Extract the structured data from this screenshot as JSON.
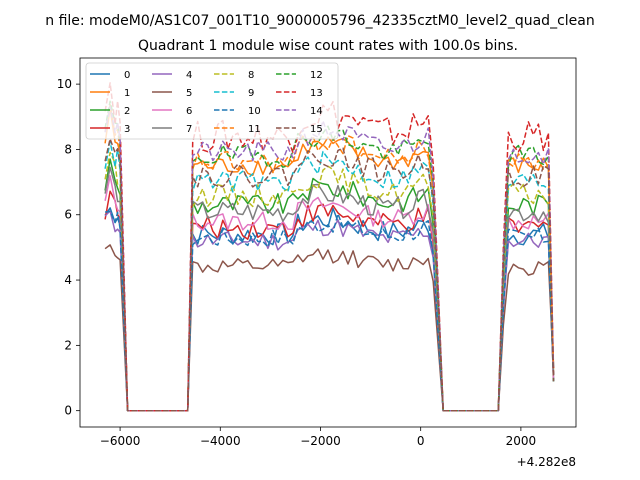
{
  "chart_data": {
    "type": "line",
    "title_line1": "n file: modeM0/AS1C07_001T10_9000005796_42335cztM0_level2_quad_clean",
    "title_line2": "Quadrant 1 module wise count rates with 100.0s bins.",
    "xlabel": "",
    "ylabel": "",
    "x_offset_label": "+4.282e8",
    "xlim": [
      -6800,
      3100
    ],
    "ylim": [
      -0.5,
      10.8
    ],
    "xticks": [
      -6000,
      -4000,
      -2000,
      0,
      2000
    ],
    "xtick_labels": [
      "−6000",
      "−4000",
      "−2000",
      "0",
      "2000"
    ],
    "yticks": [
      0,
      2,
      4,
      6,
      8,
      10
    ],
    "ytick_labels": [
      "0",
      "2",
      "4",
      "6",
      "8",
      "10"
    ],
    "legend_position": "top-left",
    "legend_columns": 4,
    "segments": [
      {
        "x_start": -6300,
        "x_end": -6000,
        "rise_to": -6000,
        "drop_to": -5850
      },
      {
        "x_start": -4650,
        "x_end": 250
      },
      {
        "x_start": 1550,
        "x_end": 2650
      }
    ],
    "gaps": [
      {
        "x_start": -5850,
        "x_end": -4650,
        "value": 0
      },
      {
        "x_start": 450,
        "x_end": 1550,
        "value": 0
      }
    ],
    "end_value": 0.9,
    "series": [
      {
        "name": "0",
        "color": "#1f77b4",
        "dash": "solid",
        "level": 5.4,
        "noise": 0.35
      },
      {
        "name": "1",
        "color": "#ff7f0e",
        "dash": "solid",
        "level": 7.5,
        "noise": 0.3
      },
      {
        "name": "2",
        "color": "#2ca02c",
        "dash": "solid",
        "level": 6.3,
        "noise": 0.35
      },
      {
        "name": "3",
        "color": "#d62728",
        "dash": "solid",
        "level": 5.6,
        "noise": 0.35
      },
      {
        "name": "4",
        "color": "#9467bd",
        "dash": "solid",
        "level": 5.2,
        "noise": 0.3
      },
      {
        "name": "5",
        "color": "#8c564b",
        "dash": "solid",
        "level": 4.4,
        "noise": 0.25
      },
      {
        "name": "6",
        "color": "#e377c2",
        "dash": "solid",
        "level": 5.8,
        "noise": 0.3
      },
      {
        "name": "7",
        "color": "#7f7f7f",
        "dash": "solid",
        "level": 6.1,
        "noise": 0.35
      },
      {
        "name": "8",
        "color": "#bcbd22",
        "dash": "dashed",
        "level": 6.6,
        "noise": 0.35
      },
      {
        "name": "9",
        "color": "#17becf",
        "dash": "dashed",
        "level": 7.0,
        "noise": 0.35
      },
      {
        "name": "10",
        "color": "#1f77b4",
        "dash": "dashed",
        "level": 5.3,
        "noise": 0.3
      },
      {
        "name": "11",
        "color": "#ff7f0e",
        "dash": "dashed",
        "level": 7.6,
        "noise": 0.35
      },
      {
        "name": "12",
        "color": "#2ca02c",
        "dash": "dashed",
        "level": 7.8,
        "noise": 0.35
      },
      {
        "name": "13",
        "color": "#d62728",
        "dash": "dashed",
        "level": 8.4,
        "noise": 0.5
      },
      {
        "name": "14",
        "color": "#9467bd",
        "dash": "dashed",
        "level": 7.9,
        "noise": 0.35
      },
      {
        "name": "15",
        "color": "#8c564b",
        "dash": "dashed",
        "level": 7.2,
        "noise": 0.35
      }
    ]
  }
}
